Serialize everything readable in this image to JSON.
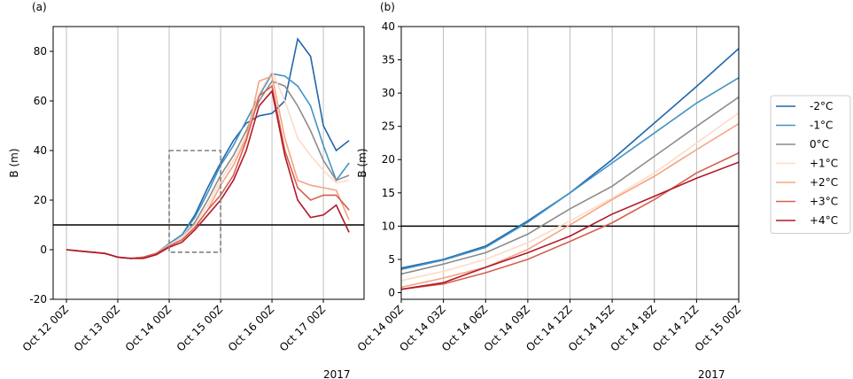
{
  "chart_data": [
    {
      "type": "line",
      "title": "(a)",
      "ylabel": "B (m)",
      "x_offset_label": "2017",
      "x": [
        0,
        6,
        12,
        18,
        24,
        30,
        36,
        42,
        48,
        54,
        60,
        66,
        72,
        78,
        84,
        90,
        96,
        102,
        108,
        114,
        120,
        126,
        132
      ],
      "xlim": [
        -6.2,
        139
      ],
      "xticks": [
        {
          "value": 0,
          "label": "Oct 12 00Z"
        },
        {
          "value": 24,
          "label": "Oct 13 00Z"
        },
        {
          "value": 48,
          "label": "Oct 14 00Z"
        },
        {
          "value": 72,
          "label": "Oct 15 00Z"
        },
        {
          "value": 96,
          "label": "Oct 16 00Z"
        },
        {
          "value": 120,
          "label": "Oct 17 00Z"
        }
      ],
      "ylim": [
        -20,
        90
      ],
      "yticks": [
        -20,
        0,
        20,
        40,
        60,
        80
      ],
      "grid": "x",
      "hline": 10,
      "box": {
        "x": [
          48,
          72
        ],
        "y": [
          -1,
          40
        ]
      },
      "series": [
        {
          "name": "-2°C",
          "color": "#2166ac",
          "values": [
            0,
            -0.5,
            -1,
            -1.5,
            -3,
            -3.5,
            -3,
            -1.5,
            2.5,
            6,
            14,
            25,
            35,
            44,
            51,
            54,
            55,
            60,
            85,
            78,
            50,
            40,
            44
          ]
        },
        {
          "name": "-1°C",
          "color": "#4393c3",
          "values": [
            0,
            -0.5,
            -1,
            -1.5,
            -3,
            -3.5,
            -3,
            -1.5,
            2.5,
            6,
            13,
            23,
            34,
            42,
            52,
            62,
            71,
            70,
            66,
            58,
            42,
            28,
            35
          ]
        },
        {
          "name": " 0°C",
          "color": "#8c8c8c",
          "values": [
            0,
            -0.5,
            -1,
            -1.5,
            -3,
            -3.5,
            -3,
            -1.5,
            2,
            5,
            11,
            20,
            30,
            38,
            48,
            60,
            68,
            66,
            58,
            48,
            36,
            28,
            30
          ]
        },
        {
          "name": "+1°C",
          "color": "#fddbc7",
          "values": [
            0,
            -0.5,
            -1,
            -1.5,
            -3,
            -3.5,
            -3,
            -1.5,
            2,
            5,
            10,
            18,
            28,
            36,
            46,
            63,
            72,
            60,
            45,
            38,
            32,
            27,
            28
          ]
        },
        {
          "name": "+2°C",
          "color": "#f4a582",
          "values": [
            0,
            -0.5,
            -1,
            -1.5,
            -3,
            -3.5,
            -3,
            -1.5,
            1.5,
            4,
            9,
            16,
            26,
            34,
            45,
            68,
            70,
            45,
            28,
            26,
            25,
            24,
            12
          ]
        },
        {
          "name": "+3°C",
          "color": "#d6604d",
          "values": [
            0,
            -0.5,
            -1,
            -1.5,
            -3,
            -3.5,
            -3,
            -1.5,
            1.5,
            4,
            9,
            16,
            22,
            30,
            44,
            62,
            66,
            40,
            25,
            20,
            22,
            22,
            16
          ]
        },
        {
          "name": "+4°C",
          "color": "#b2182b",
          "values": [
            0,
            -0.5,
            -1,
            -1.5,
            -3,
            -3.5,
            -3.5,
            -2,
            1,
            3,
            8,
            14,
            20,
            28,
            40,
            58,
            64,
            38,
            20,
            13,
            14,
            18,
            7
          ]
        }
      ]
    },
    {
      "type": "line",
      "title": "(b)",
      "ylabel": "B (m)",
      "x_offset_label": "2017",
      "x": [
        0,
        3,
        6,
        9,
        12,
        15,
        18,
        21,
        24
      ],
      "xlim": [
        0,
        24
      ],
      "xticks": [
        {
          "value": 0,
          "label": "Oct 14 00Z"
        },
        {
          "value": 3,
          "label": "Oct 14 03Z"
        },
        {
          "value": 6,
          "label": "Oct 14 06Z"
        },
        {
          "value": 9,
          "label": "Oct 14 09Z"
        },
        {
          "value": 12,
          "label": "Oct 14 12Z"
        },
        {
          "value": 15,
          "label": "Oct 14 15Z"
        },
        {
          "value": 18,
          "label": "Oct 14 18Z"
        },
        {
          "value": 21,
          "label": "Oct 14 21Z"
        },
        {
          "value": 24,
          "label": "Oct 15 00Z"
        }
      ],
      "ylim": [
        -1,
        40
      ],
      "yticks": [
        0,
        5,
        10,
        15,
        20,
        25,
        30,
        35,
        40
      ],
      "grid": "x",
      "hline": 10,
      "legend": "outside right",
      "series": [
        {
          "name": "-2°C",
          "color": "#2166ac",
          "values": [
            3.7,
            5.0,
            7.0,
            10.8,
            15,
            20,
            25.5,
            31,
            36.7
          ]
        },
        {
          "name": "-1°C",
          "color": "#4393c3",
          "values": [
            3.5,
            4.9,
            6.8,
            10.6,
            15,
            19.5,
            24,
            28.5,
            32.3
          ]
        },
        {
          "name": " 0°C",
          "color": "#8c8c8c",
          "values": [
            2.8,
            4.3,
            6,
            8.8,
            12.6,
            16,
            20.5,
            25,
            29.4
          ]
        },
        {
          "name": "+1°C",
          "color": "#fddbc7",
          "values": [
            1.8,
            3.2,
            5,
            7.5,
            10.8,
            14.2,
            18,
            22.5,
            27
          ]
        },
        {
          "name": "+2°C",
          "color": "#f4a582",
          "values": [
            0.8,
            2.2,
            3.8,
            6.5,
            10.2,
            14,
            17.5,
            21.5,
            25.4
          ]
        },
        {
          "name": "+3°C",
          "color": "#d6604d",
          "values": [
            0.5,
            1.3,
            3,
            5,
            7.7,
            10.5,
            14,
            18,
            21
          ]
        },
        {
          "name": "+4°C",
          "color": "#b2182b",
          "values": [
            0.5,
            1.5,
            3.8,
            6,
            8.5,
            11.8,
            14.5,
            17.2,
            19.6
          ]
        }
      ]
    }
  ]
}
